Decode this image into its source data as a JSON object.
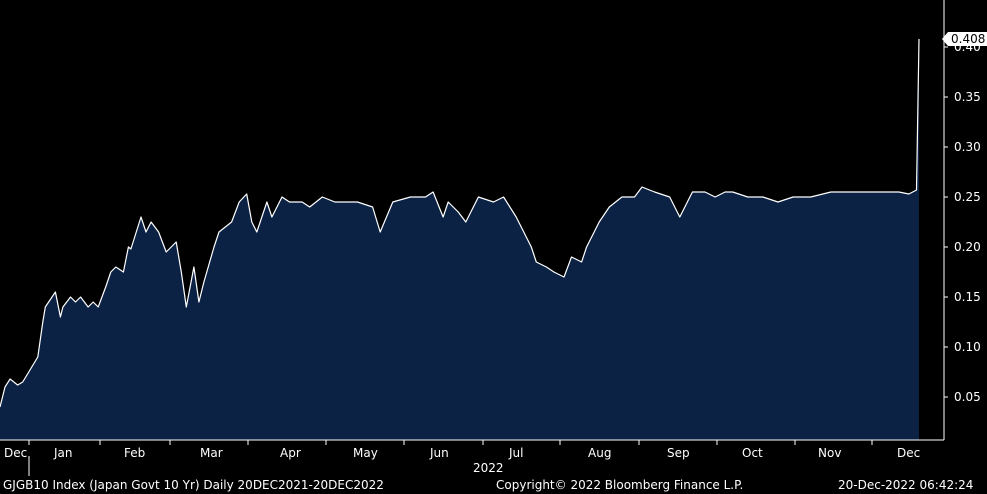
{
  "footer": {
    "left": "GJGB10 Index (Japan Govt 10 Yr)  Daily 20DEC2021-20DEC2022",
    "center": "Copyright© 2022 Bloomberg Finance L.P.",
    "right": "20-Dec-2022 06:42:24"
  },
  "chart_data": {
    "type": "area",
    "title": "",
    "xlabel": "2022",
    "ylabel": "",
    "ylim": [
      0,
      0.44
    ],
    "yticks": [
      "0.05",
      "0.10",
      "0.15",
      "0.20",
      "0.25",
      "0.30",
      "0.35",
      "0.40"
    ],
    "month_labels": [
      "Dec",
      "Jan",
      "Feb",
      "Mar",
      "Apr",
      "May",
      "Jun",
      "Jul",
      "Aug",
      "Sep",
      "Oct",
      "Nov",
      "Dec"
    ],
    "last_value_label": "0.408",
    "grid": false,
    "colors": {
      "background": "#000000",
      "fill": "#0b2244",
      "line": "#ffffff",
      "axis": "#ffffff"
    },
    "series": [
      {
        "x": [
          "2021-12-20",
          "2021-12-22",
          "2021-12-24",
          "2021-12-27",
          "2021-12-29",
          "2022-01-04",
          "2022-01-06",
          "2022-01-07",
          "2022-01-11",
          "2022-01-13",
          "2022-01-14",
          "2022-01-17",
          "2022-01-19",
          "2022-01-21",
          "2022-01-24",
          "2022-01-26",
          "2022-01-28",
          "2022-01-31",
          "2022-02-02",
          "2022-02-04",
          "2022-02-07",
          "2022-02-09",
          "2022-02-10",
          "2022-02-14",
          "2022-02-16",
          "2022-02-18",
          "2022-02-21",
          "2022-02-24",
          "2022-02-28",
          "2022-03-02",
          "2022-03-04",
          "2022-03-07",
          "2022-03-09",
          "2022-03-11",
          "2022-03-15",
          "2022-03-17",
          "2022-03-22",
          "2022-03-25",
          "2022-03-28",
          "2022-03-30",
          "2022-04-01",
          "2022-04-05",
          "2022-04-07",
          "2022-04-11",
          "2022-04-14",
          "2022-04-19",
          "2022-04-22",
          "2022-04-27",
          "2022-05-02",
          "2022-05-11",
          "2022-05-17",
          "2022-05-20",
          "2022-05-25",
          "2022-06-01",
          "2022-06-07",
          "2022-06-10",
          "2022-06-14",
          "2022-06-16",
          "2022-06-20",
          "2022-06-23",
          "2022-06-28",
          "2022-07-04",
          "2022-07-08",
          "2022-07-13",
          "2022-07-19",
          "2022-07-21",
          "2022-07-25",
          "2022-07-28",
          "2022-08-01",
          "2022-08-04",
          "2022-08-08",
          "2022-08-10",
          "2022-08-15",
          "2022-08-19",
          "2022-08-24",
          "2022-08-29",
          "2022-09-01",
          "2022-09-06",
          "2022-09-12",
          "2022-09-16",
          "2022-09-21",
          "2022-09-26",
          "2022-09-30",
          "2022-10-04",
          "2022-10-07",
          "2022-10-13",
          "2022-10-19",
          "2022-10-25",
          "2022-10-31",
          "2022-11-07",
          "2022-11-15",
          "2022-11-22",
          "2022-11-30",
          "2022-12-06",
          "2022-12-12",
          "2022-12-16",
          "2022-12-19",
          "2022-12-20"
        ],
        "values": [
          0.04,
          0.06,
          0.068,
          0.062,
          0.065,
          0.09,
          0.125,
          0.14,
          0.155,
          0.13,
          0.14,
          0.15,
          0.145,
          0.15,
          0.14,
          0.145,
          0.14,
          0.16,
          0.175,
          0.18,
          0.175,
          0.2,
          0.198,
          0.23,
          0.215,
          0.225,
          0.215,
          0.195,
          0.205,
          0.175,
          0.14,
          0.18,
          0.145,
          0.165,
          0.2,
          0.215,
          0.225,
          0.245,
          0.253,
          0.225,
          0.215,
          0.245,
          0.23,
          0.25,
          0.245,
          0.245,
          0.24,
          0.25,
          0.245,
          0.245,
          0.24,
          0.215,
          0.245,
          0.25,
          0.25,
          0.255,
          0.23,
          0.245,
          0.235,
          0.225,
          0.25,
          0.245,
          0.25,
          0.23,
          0.2,
          0.185,
          0.18,
          0.175,
          0.17,
          0.19,
          0.185,
          0.2,
          0.225,
          0.24,
          0.25,
          0.25,
          0.26,
          0.255,
          0.25,
          0.23,
          0.255,
          0.255,
          0.25,
          0.255,
          0.255,
          0.25,
          0.25,
          0.245,
          0.25,
          0.25,
          0.255,
          0.255,
          0.255,
          0.255,
          0.255,
          0.253,
          0.257,
          0.408
        ]
      }
    ]
  }
}
